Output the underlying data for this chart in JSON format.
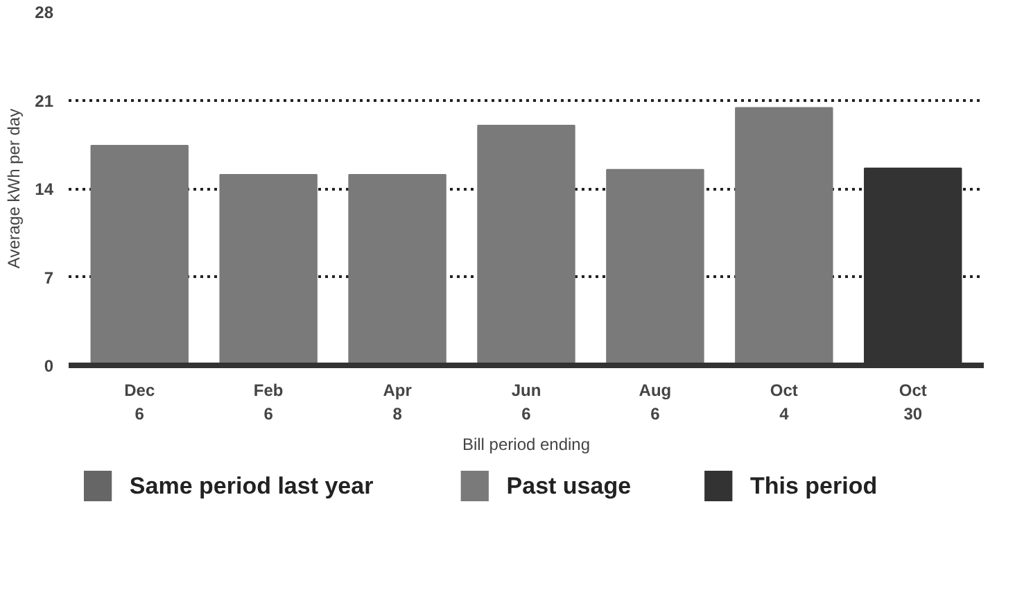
{
  "chart_data": {
    "type": "bar",
    "xlabel": "Bill period ending",
    "ylabel": "Average kWh per day",
    "categories": [
      "Dec\n6",
      "Feb\n6",
      "Apr\n8",
      "Jun\n6",
      "Aug\n6",
      "Oct\n4",
      "Oct\n30"
    ],
    "series": [
      {
        "name": "Same period last year",
        "color": "#666666",
        "values": [
          null,
          null,
          null,
          null,
          null,
          null,
          null
        ]
      },
      {
        "name": "Past usage",
        "color": "#7a7a7a",
        "values": [
          17.4,
          15.1,
          15.1,
          19.0,
          15.5,
          20.4,
          null
        ]
      },
      {
        "name": "This period",
        "color": "#333333",
        "values": [
          null,
          null,
          null,
          null,
          null,
          null,
          15.6
        ]
      }
    ],
    "ylim": [
      0,
      28
    ],
    "yticks": [
      0,
      7,
      14,
      21,
      28
    ],
    "grid": "y",
    "legend": "bottom"
  }
}
